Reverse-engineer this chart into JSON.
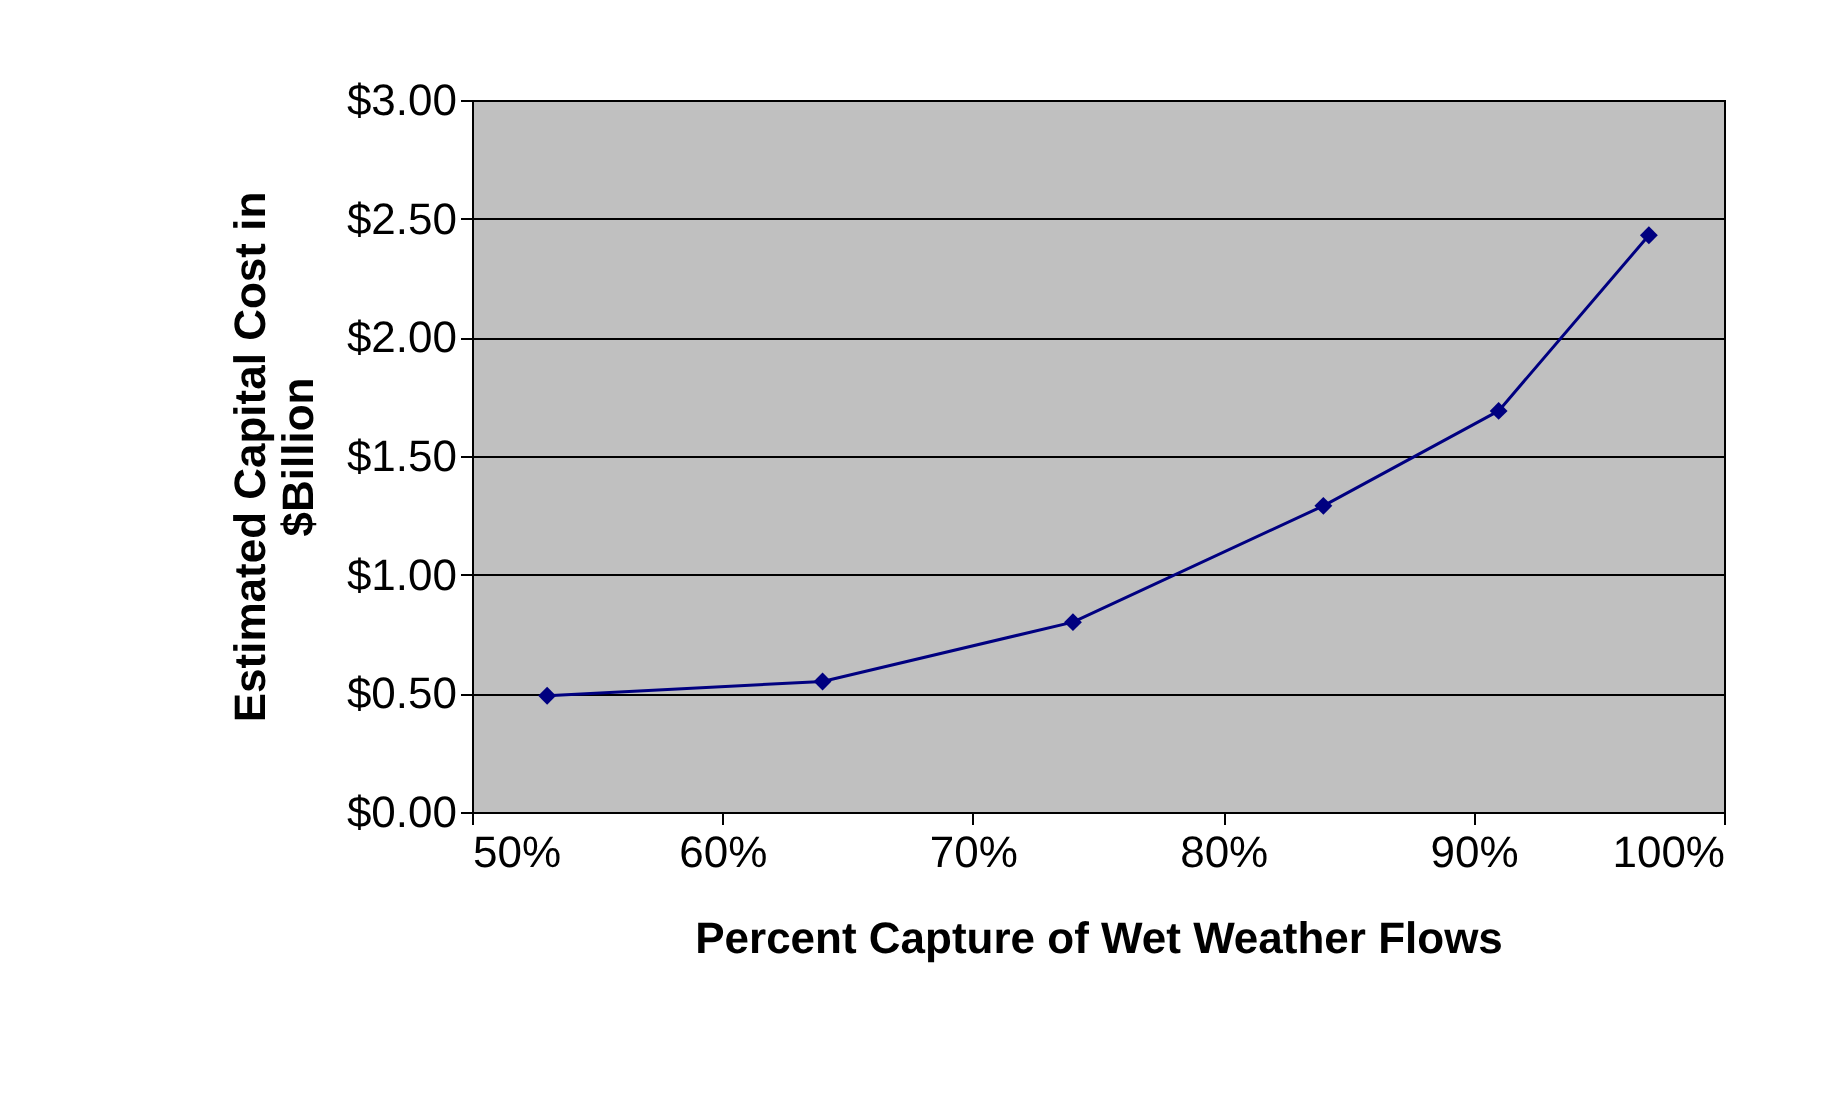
{
  "chart_data": {
    "type": "line",
    "xlabel": "Percent Capture of Wet Weather Flows",
    "ylabel": "Estimated Capital Cost in\n$Billion",
    "x": [
      53,
      64,
      74,
      84,
      91,
      97
    ],
    "series": [
      {
        "color": "#000080",
        "values": [
          0.49,
          0.55,
          0.8,
          1.29,
          1.69,
          2.43
        ]
      }
    ],
    "xlim": [
      50,
      100
    ],
    "ylim": [
      0,
      3
    ],
    "xticks": [
      {
        "value": 50,
        "label": "50%"
      },
      {
        "value": 60,
        "label": "60%"
      },
      {
        "value": 70,
        "label": "70%"
      },
      {
        "value": 80,
        "label": "80%"
      },
      {
        "value": 90,
        "label": "90%"
      },
      {
        "value": 100,
        "label": "100%"
      }
    ],
    "yticks": [
      {
        "value": 0,
        "label": "$0.00"
      },
      {
        "value": 0.5,
        "label": "$0.50"
      },
      {
        "value": 1,
        "label": "$1.00"
      },
      {
        "value": 1.5,
        "label": "$1.50"
      },
      {
        "value": 2,
        "label": "$2.00"
      },
      {
        "value": 2.5,
        "label": "$2.50"
      },
      {
        "value": 3,
        "label": "$3.00"
      }
    ],
    "grid": "y",
    "marker": "diamond",
    "line_style": "solid"
  }
}
